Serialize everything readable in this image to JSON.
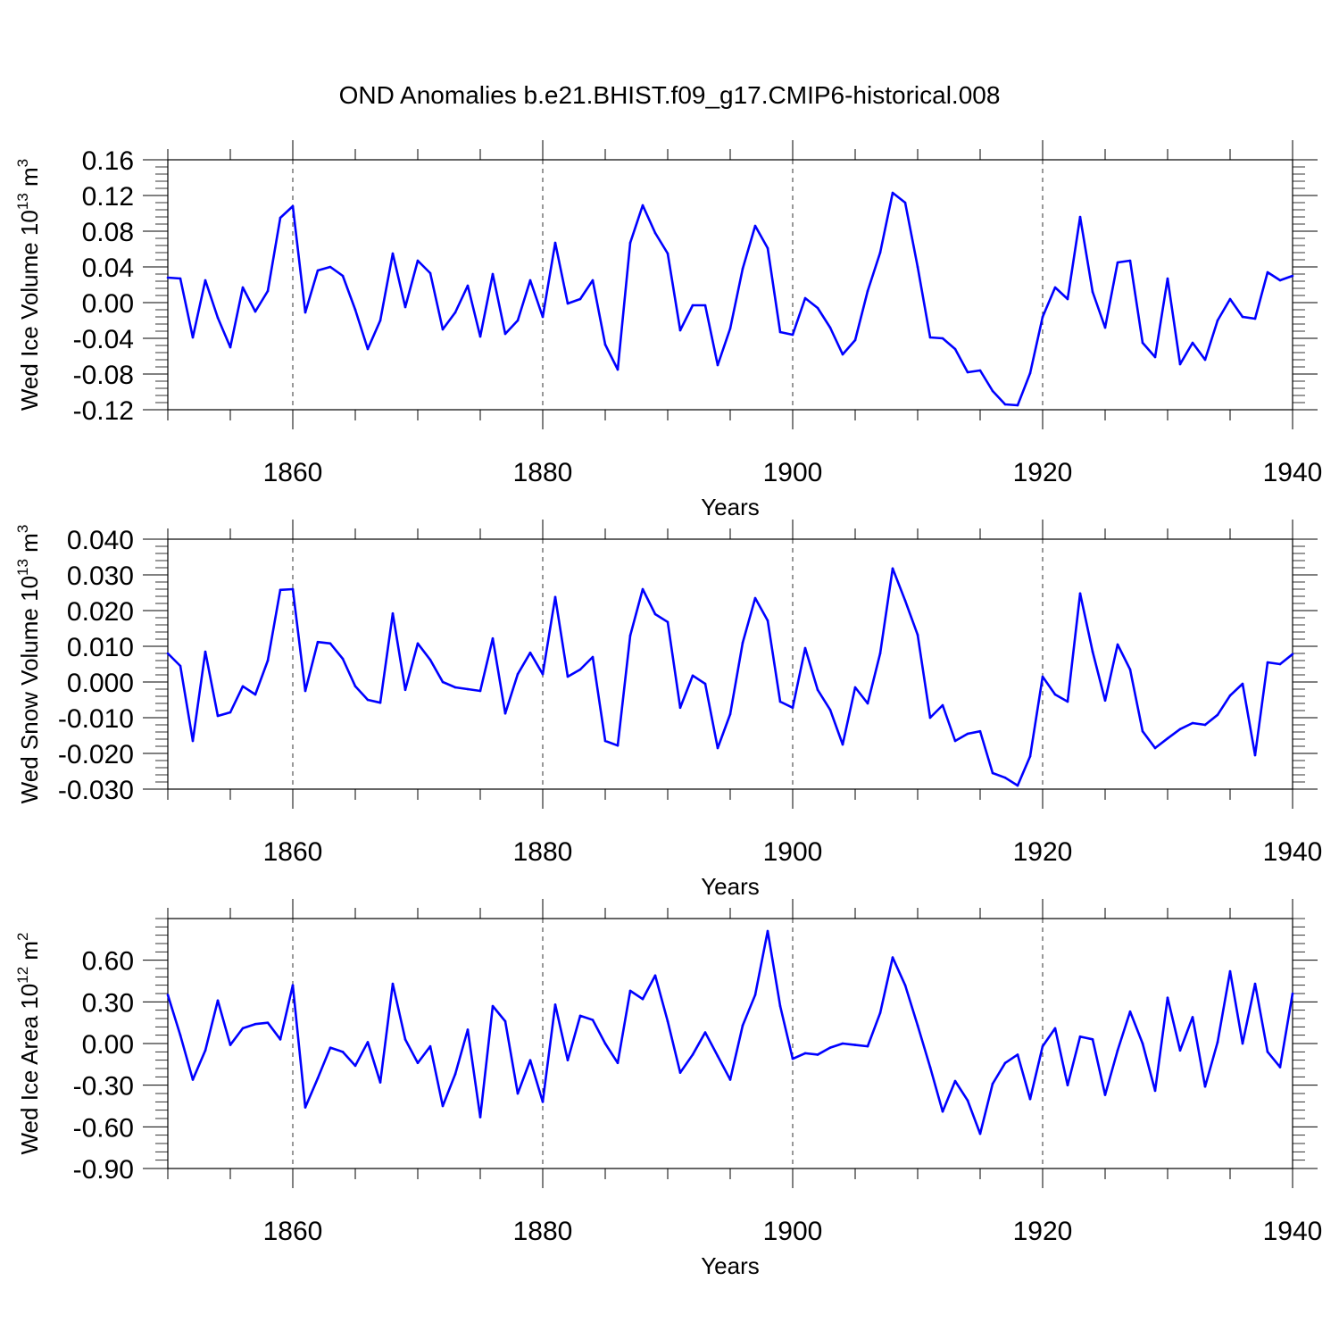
{
  "title": "OND Anomalies b.e21.BHIST.f09_g17.CMIP6-historical.008",
  "line_color": "#0000ff",
  "chart_data": [
    {
      "type": "line",
      "ylabel": "Wed Ice Volume 10",
      "ylabel_exp": "13",
      "ylabel_unit": "m",
      "ylabel_unit_exp": "3",
      "xlabel": "Years",
      "xlim": [
        1850,
        1940
      ],
      "ylim": [
        -0.12,
        0.16
      ],
      "xticks": [
        1860,
        1880,
        1900,
        1920,
        1940
      ],
      "xtick_labels": [
        "1860",
        "1880",
        "1900",
        "1920",
        "1940"
      ],
      "yticks": [
        -0.12,
        -0.08,
        -0.04,
        0.0,
        0.04,
        0.08,
        0.12,
        0.16
      ],
      "ytick_labels": [
        "-0.12",
        "-0.08",
        "-0.04",
        "0.00",
        "0.04",
        "0.08",
        "0.12",
        "0.16"
      ],
      "series": [
        {
          "name": "Weddell Ice Volume",
          "x": [
            1850,
            1851,
            1852,
            1853,
            1854,
            1855,
            1856,
            1857,
            1858,
            1859,
            1860,
            1861,
            1862,
            1863,
            1864,
            1865,
            1866,
            1867,
            1868,
            1869,
            1870,
            1871,
            1872,
            1873,
            1874,
            1875,
            1876,
            1877,
            1878,
            1879,
            1880,
            1881,
            1882,
            1883,
            1884,
            1885,
            1886,
            1887,
            1888,
            1889,
            1890,
            1891,
            1892,
            1893,
            1894,
            1895,
            1896,
            1897,
            1898,
            1899,
            1900,
            1901,
            1902,
            1903,
            1904,
            1905,
            1906,
            1907,
            1908,
            1909,
            1910,
            1911,
            1912,
            1913,
            1914,
            1915,
            1916,
            1917,
            1918,
            1919,
            1920,
            1921,
            1922,
            1923,
            1924,
            1925,
            1926,
            1927,
            1928,
            1929,
            1930,
            1931,
            1932,
            1933,
            1934,
            1935,
            1936,
            1937,
            1938,
            1939,
            1940
          ],
          "values": [
            0.028,
            0.027,
            -0.039,
            0.025,
            -0.017,
            -0.05,
            0.017,
            -0.01,
            0.013,
            0.095,
            0.108,
            -0.011,
            0.036,
            0.04,
            0.03,
            -0.008,
            -0.052,
            -0.02,
            0.055,
            -0.005,
            0.047,
            0.033,
            -0.03,
            -0.011,
            0.019,
            -0.038,
            0.032,
            -0.035,
            -0.02,
            0.025,
            -0.016,
            0.067,
            -0.001,
            0.004,
            0.025,
            -0.047,
            -0.075,
            0.067,
            0.109,
            0.078,
            0.055,
            -0.031,
            -0.003,
            -0.003,
            -0.07,
            -0.029,
            0.038,
            0.086,
            0.061,
            -0.033,
            -0.036,
            0.005,
            -0.006,
            -0.028,
            -0.058,
            -0.042,
            0.013,
            0.056,
            0.123,
            0.112,
            0.04,
            -0.039,
            -0.04,
            -0.052,
            -0.078,
            -0.076,
            -0.099,
            -0.114,
            -0.115,
            -0.079,
            -0.016,
            0.017,
            0.004,
            0.096,
            0.012,
            -0.028,
            0.045,
            0.047,
            -0.045,
            -0.061,
            0.027,
            -0.069,
            -0.045,
            -0.064,
            -0.02,
            0.004,
            -0.016,
            -0.018,
            0.034,
            0.025,
            0.03
          ]
        }
      ]
    },
    {
      "type": "line",
      "ylabel": "Wed Snow Volume 10",
      "ylabel_exp": "13",
      "ylabel_unit": "m",
      "ylabel_unit_exp": "3",
      "xlabel": "Years",
      "xlim": [
        1850,
        1940
      ],
      "ylim": [
        -0.03,
        0.04
      ],
      "xticks": [
        1860,
        1880,
        1900,
        1920,
        1940
      ],
      "xtick_labels": [
        "1860",
        "1880",
        "1900",
        "1920",
        "1940"
      ],
      "yticks": [
        -0.03,
        -0.02,
        -0.01,
        0.0,
        0.01,
        0.02,
        0.03,
        0.04
      ],
      "ytick_labels": [
        "-0.030",
        "-0.020",
        "-0.010",
        "0.000",
        "0.010",
        "0.020",
        "0.030",
        "0.040"
      ],
      "series": [
        {
          "name": "Weddell Snow Volume",
          "x": [
            1850,
            1851,
            1852,
            1853,
            1854,
            1855,
            1856,
            1857,
            1858,
            1859,
            1860,
            1861,
            1862,
            1863,
            1864,
            1865,
            1866,
            1867,
            1868,
            1869,
            1870,
            1871,
            1872,
            1873,
            1874,
            1875,
            1876,
            1877,
            1878,
            1879,
            1880,
            1881,
            1882,
            1883,
            1884,
            1885,
            1886,
            1887,
            1888,
            1889,
            1890,
            1891,
            1892,
            1893,
            1894,
            1895,
            1896,
            1897,
            1898,
            1899,
            1900,
            1901,
            1902,
            1903,
            1904,
            1905,
            1906,
            1907,
            1908,
            1909,
            1910,
            1911,
            1912,
            1913,
            1914,
            1915,
            1916,
            1917,
            1918,
            1919,
            1920,
            1921,
            1922,
            1923,
            1924,
            1925,
            1926,
            1927,
            1928,
            1929,
            1930,
            1931,
            1932,
            1933,
            1934,
            1935,
            1936,
            1937,
            1938,
            1939,
            1940
          ],
          "values": [
            0.008,
            0.0045,
            -0.0165,
            0.0085,
            -0.0095,
            -0.0085,
            -0.0012,
            -0.0035,
            0.006,
            0.0258,
            0.026,
            -0.0025,
            0.0112,
            0.0108,
            0.0065,
            -0.0012,
            -0.005,
            -0.0058,
            0.0192,
            -0.0022,
            0.0108,
            0.0062,
            0.0,
            -0.0015,
            -0.002,
            -0.0025,
            0.0122,
            -0.0088,
            0.0022,
            0.0082,
            0.0022,
            0.0238,
            0.0015,
            0.0035,
            0.007,
            -0.0165,
            -0.0178,
            0.013,
            0.026,
            0.019,
            0.0168,
            -0.0072,
            0.0018,
            -0.0005,
            -0.0185,
            -0.009,
            0.011,
            0.0235,
            0.0172,
            -0.0055,
            -0.0072,
            0.0095,
            -0.0022,
            -0.0078,
            -0.0175,
            -0.0015,
            -0.006,
            0.008,
            0.0318,
            0.0228,
            0.0132,
            -0.01,
            -0.0065,
            -0.0165,
            -0.0145,
            -0.0138,
            -0.0255,
            -0.0268,
            -0.029,
            -0.0208,
            0.0015,
            -0.0035,
            -0.0055,
            0.0248,
            0.0085,
            -0.0052,
            0.0105,
            0.0035,
            -0.0138,
            -0.0185,
            -0.0158,
            -0.0132,
            -0.0115,
            -0.012,
            -0.0092,
            -0.0038,
            -0.0005,
            -0.0205,
            0.0055,
            0.005,
            0.0078
          ]
        }
      ]
    },
    {
      "type": "line",
      "ylabel": "Wed Ice Area 10",
      "ylabel_exp": "12",
      "ylabel_unit": "m",
      "ylabel_unit_exp": "2",
      "xlabel": "Years",
      "xlim": [
        1850,
        1940
      ],
      "ylim": [
        -0.9,
        0.9
      ],
      "xticks": [
        1860,
        1880,
        1900,
        1920,
        1940
      ],
      "xtick_labels": [
        "1860",
        "1880",
        "1900",
        "1920",
        "1940"
      ],
      "yticks": [
        -0.9,
        -0.6,
        -0.3,
        0.0,
        0.3,
        0.6
      ],
      "ytick_labels": [
        "-0.90",
        "-0.60",
        "-0.30",
        "0.00",
        "0.30",
        "0.60"
      ],
      "series": [
        {
          "name": "Weddell Ice Area",
          "x": [
            1850,
            1851,
            1852,
            1853,
            1854,
            1855,
            1856,
            1857,
            1858,
            1859,
            1860,
            1861,
            1862,
            1863,
            1864,
            1865,
            1866,
            1867,
            1868,
            1869,
            1870,
            1871,
            1872,
            1873,
            1874,
            1875,
            1876,
            1877,
            1878,
            1879,
            1880,
            1881,
            1882,
            1883,
            1884,
            1885,
            1886,
            1887,
            1888,
            1889,
            1890,
            1891,
            1892,
            1893,
            1894,
            1895,
            1896,
            1897,
            1898,
            1899,
            1900,
            1901,
            1902,
            1903,
            1904,
            1905,
            1906,
            1907,
            1908,
            1909,
            1910,
            1911,
            1912,
            1913,
            1914,
            1915,
            1916,
            1917,
            1918,
            1919,
            1920,
            1921,
            1922,
            1923,
            1924,
            1925,
            1926,
            1927,
            1928,
            1929,
            1930,
            1931,
            1932,
            1933,
            1934,
            1935,
            1936,
            1937,
            1938,
            1939,
            1940
          ],
          "values": [
            0.35,
            0.06,
            -0.26,
            -0.05,
            0.31,
            -0.01,
            0.11,
            0.14,
            0.15,
            0.03,
            0.42,
            -0.46,
            -0.25,
            -0.03,
            -0.06,
            -0.16,
            0.01,
            -0.28,
            0.43,
            0.03,
            -0.14,
            -0.02,
            -0.45,
            -0.22,
            0.1,
            -0.53,
            0.27,
            0.16,
            -0.36,
            -0.12,
            -0.42,
            0.28,
            -0.12,
            0.2,
            0.17,
            0.0,
            -0.14,
            0.38,
            0.32,
            0.49,
            0.16,
            -0.21,
            -0.08,
            0.08,
            -0.09,
            -0.26,
            0.13,
            0.35,
            0.81,
            0.27,
            -0.11,
            -0.07,
            -0.08,
            -0.03,
            0.0,
            -0.01,
            -0.02,
            0.22,
            0.62,
            0.42,
            0.13,
            -0.17,
            -0.49,
            -0.27,
            -0.41,
            -0.65,
            -0.29,
            -0.14,
            -0.08,
            -0.4,
            -0.02,
            0.11,
            -0.3,
            0.05,
            0.03,
            -0.37,
            -0.05,
            0.23,
            0.0,
            -0.34,
            0.33,
            -0.05,
            0.19,
            -0.31,
            0.01,
            0.52,
            0.0,
            0.43,
            -0.06,
            -0.17,
            0.36
          ]
        }
      ]
    }
  ]
}
